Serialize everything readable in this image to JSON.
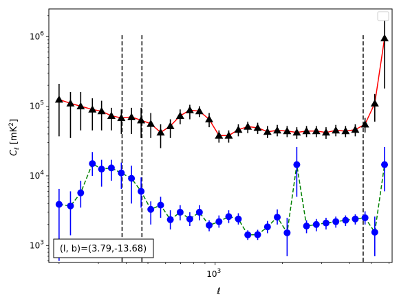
{
  "chart_data": {
    "type": "scatter",
    "xlabel": "ℓ",
    "ylabel": "C_ℓ  [mK²]",
    "x_scale": "log",
    "y_scale": "log",
    "xlim": [
      180,
      6200
    ],
    "ylim": [
      570,
      2500000
    ],
    "x_tick_labels": [
      {
        "value": 1000,
        "base": "10",
        "exp": "3"
      }
    ],
    "y_tick_labels": [
      {
        "value": 1000,
        "base": "10",
        "exp": "3"
      },
      {
        "value": 10000,
        "base": "10",
        "exp": "4"
      },
      {
        "value": 100000,
        "base": "10",
        "exp": "5"
      },
      {
        "value": 1000000,
        "base": "10",
        "exp": "6"
      }
    ],
    "vlines": [
      383,
      470,
      4600
    ],
    "legend_position": "upper-right",
    "annotation": "(l, b)=(3.79,-13.68)",
    "series": [
      {
        "marker": "triangle",
        "marker_color": "#000000",
        "line_color": "#ff0000",
        "line_style": "solid",
        "errorbar_color": "#000000",
        "x": [
          200,
          225,
          250,
          282,
          310,
          343,
          380,
          422,
          466,
          515,
          570,
          630,
          697,
          770,
          850,
          940,
          1040,
          1150,
          1270,
          1400,
          1550,
          1715,
          1897,
          2100,
          2320,
          2565,
          2837,
          3137,
          3470,
          3837,
          4240,
          4690,
          5185,
          5735
        ],
        "y": [
          125000,
          110000,
          100000,
          90000,
          85000,
          73000,
          68000,
          70000,
          63000,
          56000,
          42000,
          52000,
          73000,
          88000,
          85000,
          65000,
          38000,
          38000,
          46000,
          51000,
          49000,
          43000,
          45000,
          44000,
          42000,
          44000,
          44000,
          42000,
          45000,
          44000,
          46000,
          55000,
          110000,
          950000
        ],
        "y_low": [
          37000,
          35000,
          45000,
          45000,
          45000,
          45000,
          40000,
          40000,
          35000,
          35000,
          25000,
          35000,
          55000,
          65000,
          70000,
          50000,
          30000,
          30000,
          37000,
          41000,
          40000,
          35000,
          37000,
          36000,
          34000,
          36000,
          36000,
          34000,
          37000,
          36000,
          37000,
          42000,
          60000,
          180000
        ],
        "y_high": [
          210000,
          160000,
          160000,
          130000,
          120000,
          95000,
          90000,
          95000,
          95000,
          80000,
          55000,
          65000,
          90000,
          105000,
          100000,
          80000,
          45000,
          45000,
          55000,
          60000,
          58000,
          52000,
          54000,
          52000,
          50000,
          52000,
          52000,
          50000,
          54000,
          52000,
          55000,
          68000,
          150000,
          1700000
        ]
      },
      {
        "marker": "circle",
        "marker_color": "#0000ff",
        "line_color": "#008000",
        "line_style": "dashed",
        "errorbar_color": "#0000ff",
        "x": [
          200,
          225,
          250,
          282,
          310,
          343,
          380,
          422,
          466,
          515,
          570,
          630,
          697,
          770,
          850,
          940,
          1040,
          1150,
          1270,
          1400,
          1550,
          1715,
          1897,
          2100,
          2320,
          2565,
          2837,
          3137,
          3470,
          3837,
          4240,
          4690,
          5185,
          5735
        ],
        "y": [
          3900,
          3700,
          5700,
          15000,
          12500,
          13000,
          11000,
          9200,
          6000,
          3300,
          3800,
          2350,
          3000,
          2400,
          3000,
          1950,
          2200,
          2600,
          2400,
          1420,
          1430,
          1850,
          2550,
          1520,
          14500,
          1900,
          2000,
          2100,
          2200,
          2300,
          2400,
          2500,
          1550,
          14500
        ],
        "y_low": [
          600,
          1400,
          3500,
          10000,
          7000,
          8500,
          6500,
          4000,
          3500,
          2000,
          2500,
          1700,
          2300,
          1900,
          2300,
          1600,
          1800,
          2100,
          2000,
          1200,
          1200,
          1500,
          2000,
          700,
          5000,
          1500,
          1600,
          1700,
          1800,
          1900,
          2000,
          2000,
          700,
          6000
        ],
        "y_high": [
          6500,
          6000,
          8500,
          22000,
          17000,
          17000,
          15500,
          14000,
          9500,
          4300,
          5000,
          3200,
          3800,
          3000,
          3800,
          2300,
          2700,
          3200,
          2900,
          1650,
          1680,
          2250,
          3300,
          2500,
          26000,
          2300,
          2400,
          2500,
          2600,
          2700,
          2800,
          3100,
          2600,
          26000
        ]
      }
    ]
  }
}
